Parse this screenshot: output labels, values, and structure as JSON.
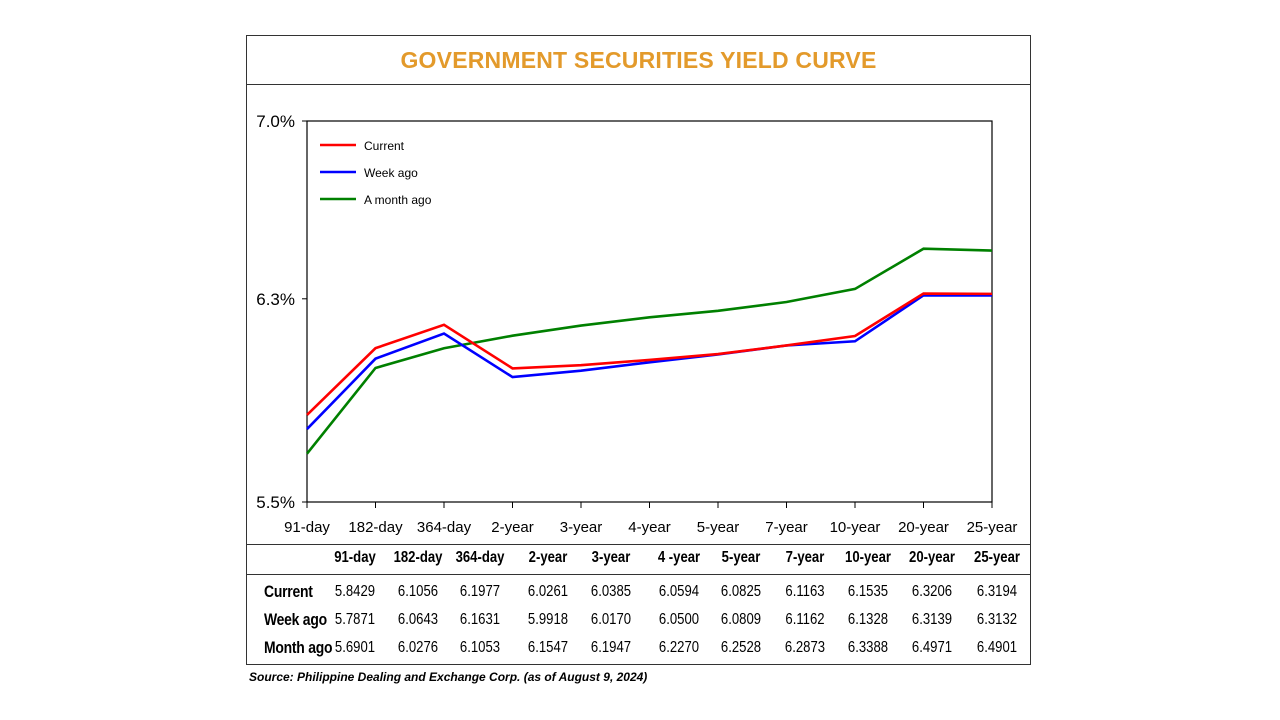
{
  "title": "GOVERNMENT SECURITIES YIELD CURVE",
  "title_color": "#E39A2B",
  "source": "Source: Philippine Dealing and Exchange Corp. (as of August 9, 2024)",
  "chart_data": {
    "type": "line",
    "title": "GOVERNMENT SECURITIES YIELD CURVE",
    "categories": [
      "91-day",
      "182-day",
      "364-day",
      "2-year",
      "3-year",
      "4-year",
      "5-year",
      "7-year",
      "10-year",
      "20-year",
      "25-year"
    ],
    "y_ticks": [
      "7.0%",
      "6.3%",
      "5.5%"
    ],
    "ylim": [
      5.5,
      7.0
    ],
    "y_tick_values": [
      7.0,
      6.3,
      5.5
    ],
    "grid": false,
    "legend_position": "top-left",
    "series": [
      {
        "name": "Current",
        "color": "#FF0000",
        "values": [
          5.8429,
          6.1056,
          6.1977,
          6.0261,
          6.0385,
          6.0594,
          6.0825,
          6.1163,
          6.1535,
          6.3206,
          6.3194
        ]
      },
      {
        "name": "Week ago",
        "color": "#0000FF",
        "values": [
          5.7871,
          6.0643,
          6.1631,
          5.9918,
          6.017,
          6.05,
          6.0809,
          6.1162,
          6.1328,
          6.3139,
          6.3132
        ]
      },
      {
        "name": "A month ago",
        "color": "#008000",
        "values": [
          5.6901,
          6.0276,
          6.1053,
          6.1547,
          6.1947,
          6.227,
          6.2528,
          6.2873,
          6.3388,
          6.4971,
          6.4901
        ]
      }
    ]
  },
  "table": {
    "headers": [
      "91-day",
      "182-day",
      "364-day",
      "2-year",
      "3-year",
      "4 -year",
      "5-year",
      "7-year",
      "10-year",
      "20-year",
      "25-year"
    ],
    "rows": [
      {
        "label": "Current",
        "values": [
          "5.8429",
          "6.1056",
          "6.1977",
          "6.0261",
          "6.0385",
          "6.0594",
          "6.0825",
          "6.1163",
          "6.1535",
          "6.3206",
          "6.3194"
        ]
      },
      {
        "label": "Week ago",
        "values": [
          "5.7871",
          "6.0643",
          "6.1631",
          "5.9918",
          "6.0170",
          "6.0500",
          "6.0809",
          "6.1162",
          "6.1328",
          "6.3139",
          "6.3132"
        ]
      },
      {
        "label": "Month ago",
        "values": [
          "5.6901",
          "6.0276",
          "6.1053",
          "6.1547",
          "6.1947",
          "6.2270",
          "6.2528",
          "6.2873",
          "6.3388",
          "6.4971",
          "6.4901"
        ]
      }
    ]
  }
}
